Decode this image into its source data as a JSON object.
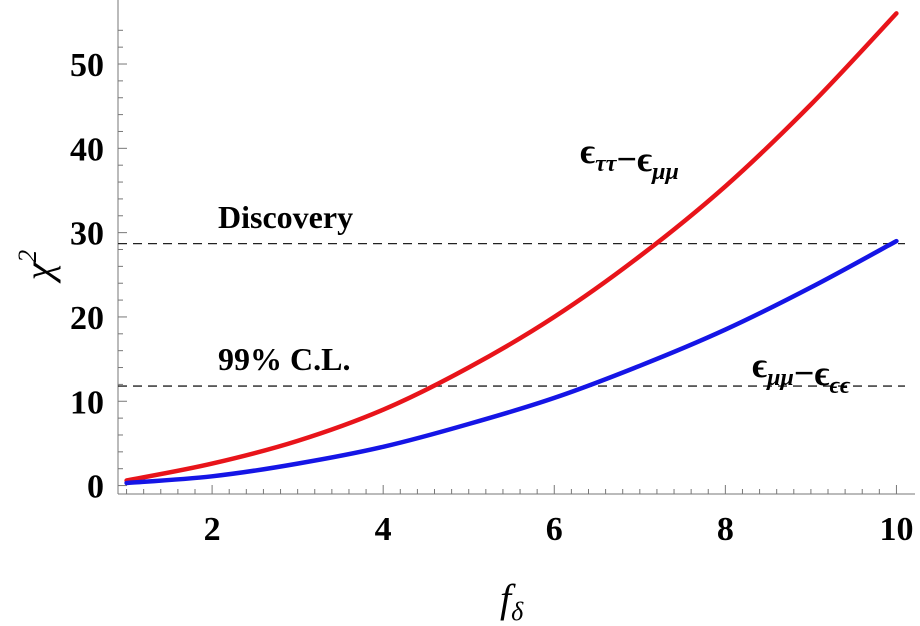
{
  "chart_data": {
    "type": "line",
    "xlabel": {
      "main": "f",
      "sub": "δ"
    },
    "ylabel": {
      "main": "χ",
      "sup": "2"
    },
    "xlim": [
      0.9,
      10.1
    ],
    "ylim": [
      -1,
      57
    ],
    "xticks": [
      2,
      4,
      6,
      8,
      10
    ],
    "yticks": [
      0,
      10,
      20,
      30,
      40,
      50
    ],
    "grid": false,
    "series": [
      {
        "label_parts": [
          {
            "t": "ϵ",
            "s": "ττ"
          },
          {
            "t": "−",
            "s": ""
          },
          {
            "t": "ϵ",
            "s": "μμ"
          }
        ],
        "color": "#e8141a",
        "x": [
          1,
          2,
          3,
          4,
          5,
          6,
          7,
          8,
          9,
          10
        ],
        "y": [
          0.6,
          2.6,
          5.3,
          9.0,
          14.0,
          20.0,
          27.2,
          35.5,
          45.2,
          56.0
        ]
      },
      {
        "label_parts": [
          {
            "t": "ϵ",
            "s": "μμ"
          },
          {
            "t": "−",
            "s": ""
          },
          {
            "t": "ϵ",
            "s": "ϵϵ"
          }
        ],
        "color": "#1515e6",
        "x": [
          1,
          2,
          3,
          4,
          5,
          6,
          7,
          8,
          9,
          10
        ],
        "y": [
          0.3,
          1.1,
          2.6,
          4.6,
          7.3,
          10.4,
          14.2,
          18.5,
          23.5,
          29.0
        ]
      }
    ],
    "reference_lines": [
      {
        "y": 28.7,
        "label": "Discovery",
        "style": "dashed"
      },
      {
        "y": 11.8,
        "label": "99% C.L.",
        "style": "dashed"
      }
    ]
  }
}
